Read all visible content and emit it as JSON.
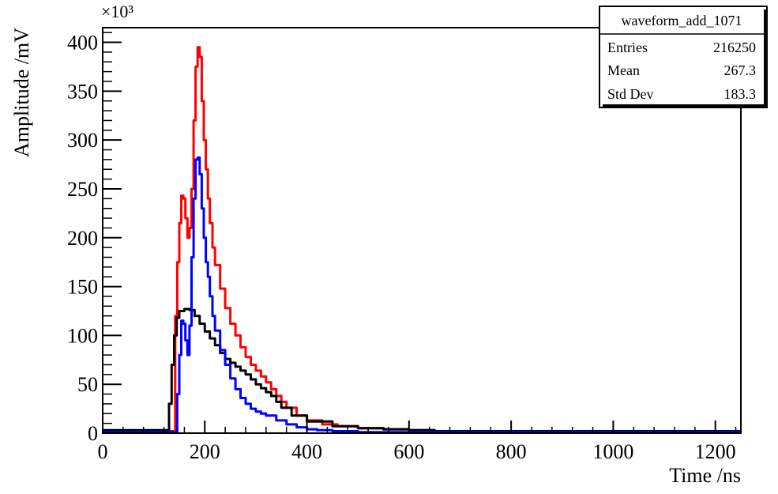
{
  "chart_data": {
    "type": "line",
    "xlabel": "Time /ns",
    "ylabel": "Amplitude /mV",
    "y_multiplier": "×10³",
    "xlim": [
      0,
      1250
    ],
    "ylim": [
      0,
      415
    ],
    "x_ticks": [
      0,
      200,
      400,
      600,
      800,
      1000,
      1200
    ],
    "x_tick_labels": [
      "0",
      "200",
      "400",
      "600",
      "800",
      "1000",
      "1200"
    ],
    "y_ticks": [
      0,
      50,
      100,
      150,
      200,
      250,
      300,
      350,
      400
    ],
    "y_tick_labels": [
      "0",
      "50",
      "100",
      "150",
      "200",
      "250",
      "300",
      "350",
      "400"
    ],
    "grid": false,
    "stats_box": {
      "title": "waveform_add_1071",
      "rows": [
        {
          "label": "Entries",
          "value": "216250"
        },
        {
          "label": "Mean",
          "value": "267.3"
        },
        {
          "label": "Std Dev",
          "value": "183.3"
        }
      ]
    },
    "series": [
      {
        "color": "#ff0000",
        "x": [
          0,
          138,
          142,
          146,
          150,
          154,
          158,
          162,
          166,
          170,
          174,
          178,
          182,
          186,
          190,
          194,
          198,
          202,
          206,
          210,
          215,
          220,
          230,
          240,
          250,
          260,
          270,
          280,
          290,
          300,
          310,
          320,
          330,
          340,
          350,
          360,
          380,
          400,
          430,
          460,
          500,
          550,
          600,
          650,
          700,
          1250
        ],
        "y": [
          2,
          2,
          120,
          175,
          215,
          243,
          240,
          220,
          200,
          210,
          250,
          320,
          375,
          395,
          385,
          340,
          300,
          270,
          240,
          215,
          190,
          172,
          148,
          128,
          112,
          100,
          88,
          78,
          70,
          64,
          58,
          52,
          45,
          38,
          32,
          26,
          18,
          13,
          9,
          7,
          5,
          4,
          3,
          2,
          2,
          2
        ]
      },
      {
        "color": "#000000",
        "x": [
          0,
          125,
          130,
          135,
          140,
          145,
          150,
          160,
          170,
          180,
          190,
          200,
          210,
          220,
          230,
          240,
          250,
          260,
          270,
          280,
          290,
          300,
          310,
          320,
          330,
          340,
          350,
          370,
          400,
          450,
          500,
          550,
          600,
          650,
          1250
        ],
        "y": [
          3,
          3,
          30,
          70,
          100,
          118,
          125,
          127,
          126,
          120,
          112,
          104,
          97,
          90,
          82,
          76,
          72,
          68,
          64,
          60,
          55,
          50,
          46,
          42,
          38,
          32,
          26,
          18,
          12,
          7,
          5,
          4,
          3,
          2,
          2
        ]
      },
      {
        "color": "#0000ff",
        "x": [
          0,
          142,
          146,
          150,
          154,
          158,
          162,
          166,
          170,
          174,
          178,
          182,
          186,
          190,
          194,
          198,
          202,
          206,
          210,
          215,
          220,
          230,
          240,
          250,
          260,
          270,
          280,
          290,
          300,
          310,
          320,
          340,
          360,
          380,
          400,
          420,
          450,
          500,
          1250
        ],
        "y": [
          1,
          1,
          40,
          80,
          115,
          112,
          95,
          80,
          110,
          180,
          240,
          280,
          282,
          265,
          230,
          200,
          175,
          160,
          140,
          120,
          105,
          85,
          70,
          56,
          45,
          36,
          30,
          25,
          22,
          20,
          18,
          13,
          9,
          6,
          4,
          3,
          2,
          1,
          1
        ]
      }
    ]
  }
}
